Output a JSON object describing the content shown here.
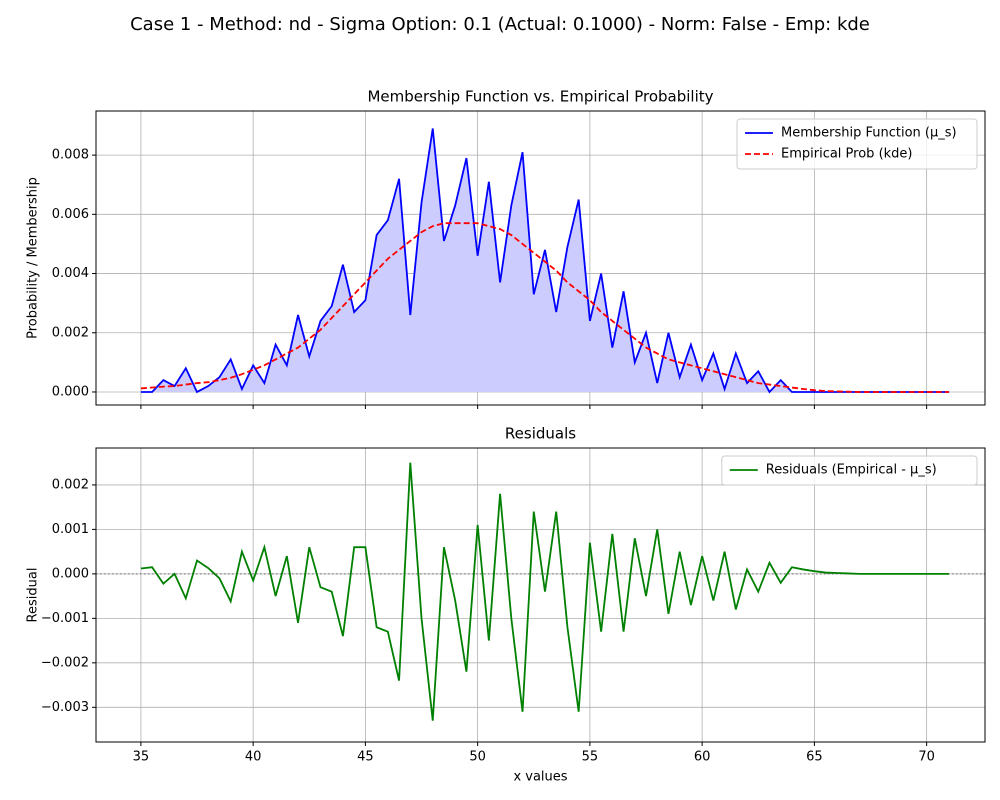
{
  "title": "Case 1 - Method: nd - Sigma Option: 0.1 (Actual: 0.1000) - Norm: False - Emp: kde",
  "chart_data": [
    {
      "type": "line",
      "title": "Membership Function vs. Empirical Probability",
      "ylabel": "Probability / Membership",
      "x": [
        35,
        35.5,
        36,
        36.5,
        37,
        37.5,
        38,
        38.5,
        39,
        39.5,
        40,
        40.5,
        41,
        41.5,
        42,
        42.5,
        43,
        43.5,
        44,
        44.5,
        45,
        45.5,
        46,
        46.5,
        47,
        47.5,
        48,
        48.5,
        49,
        49.5,
        50,
        50.5,
        51,
        51.5,
        52,
        52.5,
        53,
        53.5,
        54,
        54.5,
        55,
        55.5,
        56,
        56.5,
        57,
        57.5,
        58,
        58.5,
        59,
        59.5,
        60,
        60.5,
        61,
        61.5,
        62,
        62.5,
        63,
        63.5,
        64,
        64.5,
        65,
        65.5,
        66,
        66.5,
        67,
        67.5,
        68,
        68.5,
        69,
        69.5,
        70,
        70.5,
        71
      ],
      "series": [
        {
          "name": "Membership Function (μ_s)",
          "color": "#0000ff",
          "fill": "#ccccff",
          "linestyle": "solid",
          "values": [
            0,
            0,
            0.0004,
            0.0002,
            0.0008,
            0,
            0.0002,
            0.0005,
            0.0011,
            0.0001,
            0.0009,
            0.0003,
            0.0016,
            0.0009,
            0.0026,
            0.0012,
            0.0024,
            0.0029,
            0.0043,
            0.0027,
            0.0031,
            0.0053,
            0.0058,
            0.0072,
            0.0026,
            0.0064,
            0.0089,
            0.0051,
            0.0063,
            0.0079,
            0.0046,
            0.0071,
            0.0037,
            0.0063,
            0.0081,
            0.0033,
            0.0048,
            0.0027,
            0.0049,
            0.0065,
            0.0024,
            0.004,
            0.0015,
            0.0034,
            0.001,
            0.002,
            0.0003,
            0.002,
            0.0005,
            0.0016,
            0.0004,
            0.0013,
            0.0001,
            0.0013,
            0.0003,
            0.0007,
            0,
            0.0004,
            0,
            0,
            0,
            0,
            0,
            0,
            0,
            0,
            0,
            0,
            0,
            0,
            0,
            0,
            0
          ]
        },
        {
          "name": "Empirical Prob (kde)",
          "color": "#ff0000",
          "linestyle": "dashed",
          "values": [
            0.00012,
            0.00015,
            0.00018,
            0.0002,
            0.00025,
            0.0003,
            0.00033,
            0.0004,
            0.00048,
            0.0006,
            0.00075,
            0.0009,
            0.0011,
            0.0013,
            0.0015,
            0.0018,
            0.0021,
            0.0025,
            0.0029,
            0.0033,
            0.0037,
            0.0041,
            0.0045,
            0.0048,
            0.0051,
            0.0054,
            0.0056,
            0.0057,
            0.0057,
            0.0057,
            0.0057,
            0.0056,
            0.0055,
            0.0053,
            0.005,
            0.0047,
            0.0044,
            0.0041,
            0.0037,
            0.0034,
            0.0031,
            0.0027,
            0.0024,
            0.0021,
            0.0018,
            0.0015,
            0.0013,
            0.0011,
            0.001,
            0.0009,
            0.0008,
            0.0007,
            0.0006,
            0.0005,
            0.0004,
            0.0003,
            0.00025,
            0.0002,
            0.00015,
            0.0001,
            6e-05,
            3e-05,
            2e-05,
            1e-05,
            0,
            0,
            0,
            0,
            0,
            0,
            0,
            0,
            0
          ]
        }
      ],
      "xlim": [
        33,
        72.6
      ],
      "xticks": [
        35,
        40,
        45,
        50,
        55,
        60,
        65,
        70
      ],
      "show_xtick_labels": false,
      "ylim": [
        -0.00044,
        0.00949
      ],
      "yticks": [
        {
          "value": 0,
          "label": "0.000"
        },
        {
          "value": 0.002,
          "label": "0.002"
        },
        {
          "value": 0.004,
          "label": "0.004"
        },
        {
          "value": 0.006,
          "label": "0.006"
        },
        {
          "value": 0.008,
          "label": "0.008"
        }
      ],
      "grid": true,
      "legend": "upper right"
    },
    {
      "type": "line",
      "title": "Residuals",
      "ylabel": "Residual",
      "xlabel": "x values",
      "x": [
        35,
        35.5,
        36,
        36.5,
        37,
        37.5,
        38,
        38.5,
        39,
        39.5,
        40,
        40.5,
        41,
        41.5,
        42,
        42.5,
        43,
        43.5,
        44,
        44.5,
        45,
        45.5,
        46,
        46.5,
        47,
        47.5,
        48,
        48.5,
        49,
        49.5,
        50,
        50.5,
        51,
        51.5,
        52,
        52.5,
        53,
        53.5,
        54,
        54.5,
        55,
        55.5,
        56,
        56.5,
        57,
        57.5,
        58,
        58.5,
        59,
        59.5,
        60,
        60.5,
        61,
        61.5,
        62,
        62.5,
        63,
        63.5,
        64,
        64.5,
        65,
        65.5,
        66,
        66.5,
        67,
        67.5,
        68,
        68.5,
        69,
        69.5,
        70,
        70.5,
        71
      ],
      "series": [
        {
          "name": "Residuals (Empirical - μ_s)",
          "color": "#008000",
          "linestyle": "solid",
          "values": [
            0.00012,
            0.00015,
            -0.00022,
            0,
            -0.00055,
            0.0003,
            0.00013,
            -0.0001,
            -0.00062,
            0.0005,
            -0.00015,
            0.0006,
            -0.0005,
            0.0004,
            -0.0011,
            0.0006,
            -0.0003,
            -0.0004,
            -0.0014,
            0.0006,
            0.0006,
            -0.0012,
            -0.0013,
            -0.0024,
            0.0025,
            -0.001,
            -0.0033,
            0.0006,
            -0.0006,
            -0.0022,
            0.0011,
            -0.0015,
            0.0018,
            -0.001,
            -0.0031,
            0.0014,
            -0.0004,
            0.0014,
            -0.0012,
            -0.0031,
            0.0007,
            -0.0013,
            0.0009,
            -0.0013,
            0.0008,
            -0.0005,
            0.001,
            -0.0009,
            0.0005,
            -0.0007,
            0.0004,
            -0.0006,
            0.0005,
            -0.0008,
            0.0001,
            -0.0004,
            0.00025,
            -0.0002,
            0.00015,
            0.0001,
            6e-05,
            3e-05,
            2e-05,
            1e-05,
            0,
            0,
            0,
            0,
            0,
            0,
            0,
            0,
            0
          ]
        }
      ],
      "reference_line": {
        "value": 0,
        "color": "#808080",
        "linestyle": "dotted"
      },
      "xlim": [
        33,
        72.6
      ],
      "xticks": [
        35,
        40,
        45,
        50,
        55,
        60,
        65,
        70
      ],
      "show_xtick_labels": true,
      "ylim": [
        -0.00378,
        0.00283
      ],
      "yticks": [
        {
          "value": -0.003,
          "label": "−0.003"
        },
        {
          "value": -0.002,
          "label": "−0.002"
        },
        {
          "value": -0.001,
          "label": "−0.001"
        },
        {
          "value": 0,
          "label": "0.000"
        },
        {
          "value": 0.001,
          "label": "0.001"
        },
        {
          "value": 0.002,
          "label": "0.002"
        }
      ],
      "grid": true,
      "legend": "upper right"
    }
  ]
}
